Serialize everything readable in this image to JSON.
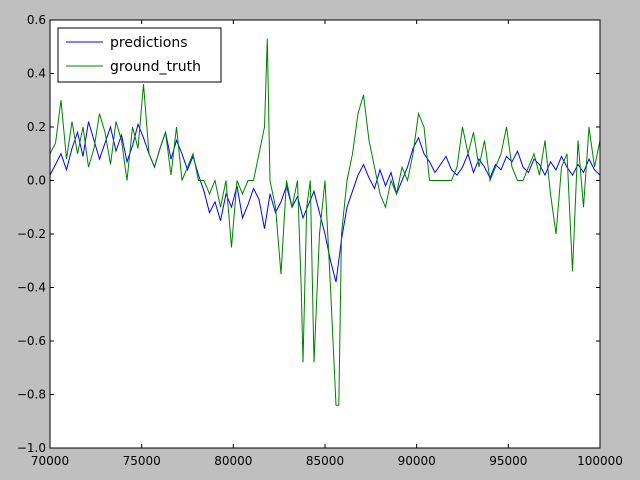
{
  "colors": {
    "figure_background": "#bfbfbf",
    "axes_background": "#ffffff",
    "predictions": "#0000ff",
    "ground_truth": "#008000"
  },
  "chart_data": {
    "type": "line",
    "title": "",
    "xlabel": "",
    "ylabel": "",
    "xlim": [
      70000,
      100000
    ],
    "ylim": [
      -1.0,
      0.6
    ],
    "grid": false,
    "legend_position": "top-left",
    "x_ticks": [
      70000,
      75000,
      80000,
      85000,
      90000,
      95000,
      100000
    ],
    "x_tick_labels": [
      "70000",
      "75000",
      "80000",
      "85000",
      "90000",
      "95000",
      "100000"
    ],
    "y_ticks": [
      -1.0,
      -0.8,
      -0.6,
      -0.4,
      -0.2,
      0.0,
      0.2,
      0.4,
      0.6
    ],
    "y_tick_labels": [
      "−1.0",
      "−0.8",
      "−0.6",
      "−0.4",
      "−0.2",
      "0.0",
      "0.2",
      "0.4",
      "0.6"
    ],
    "series": [
      {
        "name": "predictions",
        "color": "#0000ff",
        "x": [
          70000,
          70300,
          70600,
          70900,
          71200,
          71500,
          71800,
          72100,
          72400,
          72700,
          73000,
          73300,
          73600,
          73900,
          74200,
          74500,
          74800,
          75100,
          75400,
          75700,
          76000,
          76300,
          76600,
          76900,
          77200,
          77500,
          77800,
          78100,
          78400,
          78700,
          79000,
          79300,
          79600,
          79900,
          80200,
          80500,
          80800,
          81100,
          81400,
          81700,
          82000,
          82300,
          82600,
          82900,
          83200,
          83500,
          83800,
          84100,
          84400,
          84700,
          85000,
          85300,
          85600,
          85900,
          86200,
          86500,
          86800,
          87100,
          87400,
          87700,
          88000,
          88300,
          88600,
          88900,
          89200,
          89500,
          89800,
          90100,
          90400,
          90700,
          91000,
          91300,
          91600,
          91900,
          92200,
          92500,
          92800,
          93100,
          93400,
          93700,
          94000,
          94300,
          94600,
          94900,
          95200,
          95500,
          95800,
          96100,
          96400,
          96700,
          97000,
          97300,
          97600,
          97900,
          98200,
          98500,
          98800,
          99100,
          99400,
          99700,
          100000
        ],
        "y": [
          0.02,
          0.06,
          0.1,
          0.04,
          0.12,
          0.18,
          0.09,
          0.22,
          0.15,
          0.08,
          0.14,
          0.2,
          0.11,
          0.17,
          0.07,
          0.13,
          0.21,
          0.16,
          0.1,
          0.05,
          0.12,
          0.18,
          0.08,
          0.15,
          0.1,
          0.04,
          0.09,
          0.02,
          -0.04,
          -0.12,
          -0.08,
          -0.15,
          -0.05,
          -0.1,
          -0.02,
          -0.14,
          -0.09,
          -0.03,
          -0.07,
          -0.18,
          -0.05,
          -0.12,
          -0.08,
          -0.02,
          -0.1,
          -0.06,
          -0.14,
          -0.09,
          -0.04,
          -0.12,
          -0.2,
          -0.3,
          -0.38,
          -0.22,
          -0.1,
          -0.04,
          0.02,
          0.06,
          0.01,
          -0.03,
          0.04,
          -0.02,
          0.03,
          -0.05,
          0.0,
          0.05,
          0.12,
          0.16,
          0.1,
          0.07,
          0.03,
          0.06,
          0.09,
          0.04,
          0.02,
          0.05,
          0.1,
          0.03,
          0.08,
          0.05,
          0.01,
          0.06,
          0.04,
          0.09,
          0.07,
          0.11,
          0.05,
          0.03,
          0.08,
          0.06,
          0.02,
          0.07,
          0.04,
          0.09,
          0.05,
          0.02,
          0.06,
          0.03,
          0.08,
          0.04,
          0.02
        ],
        "style": "line"
      },
      {
        "name": "ground_truth",
        "color": "#008000",
        "x": [
          70000,
          70300,
          70600,
          70900,
          71200,
          71500,
          71800,
          72100,
          72400,
          72700,
          73000,
          73300,
          73600,
          73900,
          74200,
          74500,
          74800,
          75100,
          75400,
          75700,
          76000,
          76300,
          76600,
          76900,
          77200,
          77500,
          77800,
          78100,
          78400,
          78700,
          79000,
          79300,
          79600,
          79900,
          80200,
          80500,
          80800,
          81100,
          81400,
          81700,
          81850,
          82000,
          82300,
          82600,
          82900,
          83200,
          83500,
          83700,
          83800,
          84000,
          84200,
          84400,
          84700,
          85000,
          85300,
          85600,
          85750,
          85900,
          86200,
          86500,
          86800,
          87100,
          87400,
          87700,
          88000,
          88300,
          88600,
          88900,
          89200,
          89500,
          89800,
          90100,
          90400,
          90700,
          91000,
          91300,
          91600,
          91900,
          92200,
          92500,
          92800,
          93100,
          93400,
          93700,
          94000,
          94300,
          94600,
          94900,
          95200,
          95500,
          95800,
          96100,
          96400,
          96700,
          97000,
          97300,
          97600,
          97900,
          98200,
          98500,
          98800,
          99100,
          99400,
          99700,
          100000
        ],
        "y": [
          0.1,
          0.14,
          0.3,
          0.08,
          0.22,
          0.1,
          0.2,
          0.05,
          0.12,
          0.25,
          0.18,
          0.06,
          0.22,
          0.15,
          0.0,
          0.2,
          0.12,
          0.36,
          0.1,
          0.05,
          0.12,
          0.18,
          0.02,
          0.2,
          0.0,
          0.05,
          0.1,
          0.0,
          0.0,
          -0.05,
          0.0,
          -0.1,
          0.0,
          -0.25,
          0.0,
          -0.05,
          0.0,
          0.0,
          0.1,
          0.2,
          0.53,
          0.0,
          -0.1,
          -0.35,
          0.0,
          -0.1,
          0.0,
          -0.4,
          -0.68,
          -0.1,
          0.0,
          -0.68,
          -0.2,
          0.0,
          -0.4,
          -0.84,
          -0.84,
          -0.2,
          0.0,
          0.1,
          0.25,
          0.32,
          0.15,
          0.05,
          -0.05,
          -0.1,
          0.0,
          -0.05,
          0.05,
          0.0,
          0.1,
          0.25,
          0.2,
          0.0,
          0.0,
          0.0,
          0.0,
          0.0,
          0.05,
          0.2,
          0.1,
          0.18,
          0.05,
          0.15,
          0.0,
          0.05,
          0.1,
          0.2,
          0.05,
          0.0,
          0.0,
          0.05,
          0.1,
          0.02,
          0.15,
          -0.05,
          -0.2,
          0.05,
          0.1,
          -0.34,
          0.15,
          -0.1,
          0.2,
          0.05,
          0.15
        ],
        "style": "line"
      }
    ]
  }
}
